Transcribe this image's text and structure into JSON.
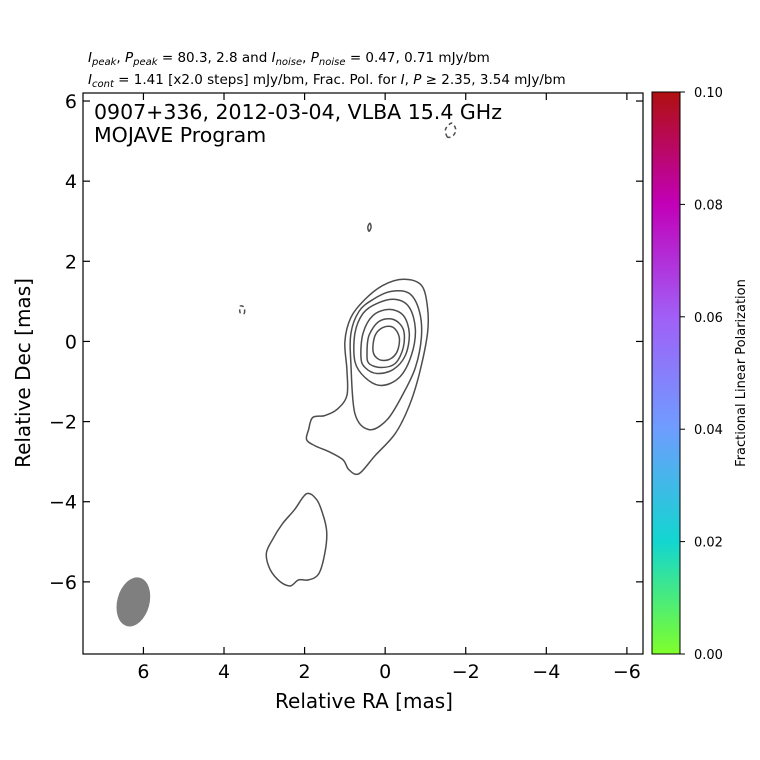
{
  "header": {
    "line1": {
      "i_sym": "I",
      "i_sub": "peak",
      "sep1": ", ",
      "p_sym": "P",
      "p_sub": "peak",
      "rest1": " = 80.3, 2.8 and ",
      "in_sym": "I",
      "in_sub": "noise",
      "sep2": ", ",
      "pn_sym": "P",
      "pn_sub": "noise",
      "rest2": " = 0.47, 0.71 mJy/bm"
    },
    "line2": {
      "ic_sym": "I",
      "ic_sub": "cont",
      "rest1": " = 1.41 [x2.0 steps] mJy/bm, Frac. Pol. for ",
      "i_sym": "I",
      "sep": ", ",
      "p_sym": "P",
      "rest2": " ≥  2.35, 3.54 mJy/bm"
    }
  },
  "chart_data": {
    "type": "contour",
    "title": "0907+336, 2012-03-04, VLBA 15.4 GHz",
    "subtitle": "MOJAVE Program",
    "xlabel": "Relative RA [mas]",
    "ylabel": "Relative Dec [mas]",
    "xlim": [
      7.5,
      -6.4
    ],
    "ylim": [
      -7.8,
      6.2
    ],
    "x_ticks": [
      6,
      4,
      2,
      0,
      -2,
      -4,
      -6
    ],
    "x_tick_labels": [
      "6",
      "4",
      "2",
      "0",
      "−2",
      "−4",
      "−6"
    ],
    "y_ticks": [
      6,
      4,
      2,
      0,
      -2,
      -4,
      -6
    ],
    "y_tick_labels": [
      "6",
      "4",
      "2",
      "0",
      "−2",
      "−4",
      "−6"
    ],
    "contour_levels_mJy": [
      1.41,
      2.82,
      5.64,
      11.28,
      22.56,
      45.12
    ],
    "contours": [
      {
        "level": 1.41,
        "style": "solid",
        "points": [
          [
            1.9,
            -2.2
          ],
          [
            1.8,
            -1.9
          ],
          [
            1.5,
            -1.85
          ],
          [
            1.2,
            -1.7
          ],
          [
            0.95,
            -1.35
          ],
          [
            0.95,
            -0.7
          ],
          [
            1.0,
            0.0
          ],
          [
            0.85,
            0.6
          ],
          [
            0.5,
            1.05
          ],
          [
            0.05,
            1.4
          ],
          [
            -0.45,
            1.55
          ],
          [
            -0.9,
            1.4
          ],
          [
            -1.05,
            0.85
          ],
          [
            -1.05,
            0.2
          ],
          [
            -0.85,
            -0.8
          ],
          [
            -0.6,
            -1.6
          ],
          [
            -0.25,
            -2.3
          ],
          [
            0.25,
            -2.85
          ],
          [
            0.65,
            -3.3
          ],
          [
            0.9,
            -3.2
          ],
          [
            1.05,
            -2.95
          ],
          [
            1.4,
            -2.75
          ],
          [
            1.75,
            -2.6
          ],
          [
            1.95,
            -2.45
          ]
        ]
      },
      {
        "level": 2.82,
        "style": "solid",
        "points": [
          [
            0.85,
            -0.55
          ],
          [
            0.85,
            0.2
          ],
          [
            0.65,
            0.75
          ],
          [
            0.3,
            1.05
          ],
          [
            -0.15,
            1.25
          ],
          [
            -0.6,
            1.2
          ],
          [
            -0.85,
            0.75
          ],
          [
            -0.9,
            0.1
          ],
          [
            -0.75,
            -0.65
          ],
          [
            -0.45,
            -1.3
          ],
          [
            -0.05,
            -1.95
          ],
          [
            0.4,
            -2.2
          ],
          [
            0.75,
            -1.8
          ]
        ]
      },
      {
        "level": 5.64,
        "style": "solid",
        "points": [
          [
            0.75,
            -0.5
          ],
          [
            0.75,
            0.2
          ],
          [
            0.55,
            0.7
          ],
          [
            0.2,
            0.95
          ],
          [
            -0.25,
            1.05
          ],
          [
            -0.6,
            0.85
          ],
          [
            -0.75,
            0.3
          ],
          [
            -0.65,
            -0.35
          ],
          [
            -0.35,
            -0.9
          ],
          [
            0.1,
            -1.1
          ],
          [
            0.5,
            -0.9
          ]
        ]
      },
      {
        "level": 11.28,
        "style": "solid",
        "points": [
          [
            0.6,
            -0.4
          ],
          [
            0.55,
            0.2
          ],
          [
            0.3,
            0.65
          ],
          [
            -0.1,
            0.8
          ],
          [
            -0.45,
            0.65
          ],
          [
            -0.6,
            0.2
          ],
          [
            -0.5,
            -0.35
          ],
          [
            -0.2,
            -0.7
          ],
          [
            0.2,
            -0.8
          ],
          [
            0.5,
            -0.65
          ]
        ]
      },
      {
        "level": 22.56,
        "style": "solid",
        "points": [
          [
            0.45,
            -0.3
          ],
          [
            0.4,
            0.15
          ],
          [
            0.15,
            0.5
          ],
          [
            -0.2,
            0.55
          ],
          [
            -0.45,
            0.3
          ],
          [
            -0.45,
            -0.15
          ],
          [
            -0.25,
            -0.55
          ],
          [
            0.1,
            -0.65
          ],
          [
            0.4,
            -0.55
          ]
        ]
      },
      {
        "level": 45.12,
        "style": "solid",
        "points": [
          [
            0.3,
            -0.25
          ],
          [
            0.25,
            0.15
          ],
          [
            0.05,
            0.35
          ],
          [
            -0.2,
            0.35
          ],
          [
            -0.35,
            0.1
          ],
          [
            -0.3,
            -0.25
          ],
          [
            -0.1,
            -0.45
          ],
          [
            0.15,
            -0.45
          ]
        ]
      },
      {
        "level": 1.41,
        "style": "solid",
        "points": [
          [
            2.25,
            -4.2
          ],
          [
            2.55,
            -4.55
          ],
          [
            2.8,
            -4.95
          ],
          [
            2.95,
            -5.3
          ],
          [
            2.85,
            -5.7
          ],
          [
            2.6,
            -6.0
          ],
          [
            2.35,
            -6.1
          ],
          [
            2.15,
            -5.95
          ],
          [
            1.9,
            -5.95
          ],
          [
            1.65,
            -5.8
          ],
          [
            1.5,
            -5.3
          ],
          [
            1.45,
            -4.75
          ],
          [
            1.55,
            -4.3
          ],
          [
            1.7,
            -3.95
          ],
          [
            1.95,
            -3.8
          ]
        ]
      },
      {
        "level": 1.41,
        "style": "solid",
        "points": [
          [
            0.4,
            2.75
          ],
          [
            0.35,
            2.85
          ],
          [
            0.38,
            2.95
          ],
          [
            0.43,
            2.85
          ]
        ]
      },
      {
        "level": -1.41,
        "style": "dashed",
        "points": [
          [
            3.5,
            0.7
          ],
          [
            3.5,
            0.85
          ],
          [
            3.6,
            0.88
          ],
          [
            3.6,
            0.72
          ]
        ]
      },
      {
        "level": -1.41,
        "style": "dashed",
        "points": [
          [
            -1.55,
            5.1
          ],
          [
            -1.5,
            5.3
          ],
          [
            -1.65,
            5.45
          ],
          [
            -1.75,
            5.3
          ],
          [
            -1.7,
            5.15
          ]
        ]
      }
    ],
    "beam": {
      "x": 6.25,
      "y": -6.5,
      "major_mas": 1.25,
      "minor_mas": 0.8,
      "pa_deg": -15
    },
    "colorbar": {
      "label": "Fractional Linear Polarization",
      "range": [
        0.0,
        0.1
      ],
      "ticks": [
        "0.00",
        "0.02",
        "0.04",
        "0.06",
        "0.08",
        "0.10"
      ],
      "stops": [
        "#7fff2a",
        "#12d6d0",
        "#6e9dff",
        "#a15ff7",
        "#c200b8",
        "#b01010"
      ]
    },
    "grid": false,
    "colors": {
      "contour": "#4d4d4d",
      "beam": "#7f7f7f"
    }
  }
}
